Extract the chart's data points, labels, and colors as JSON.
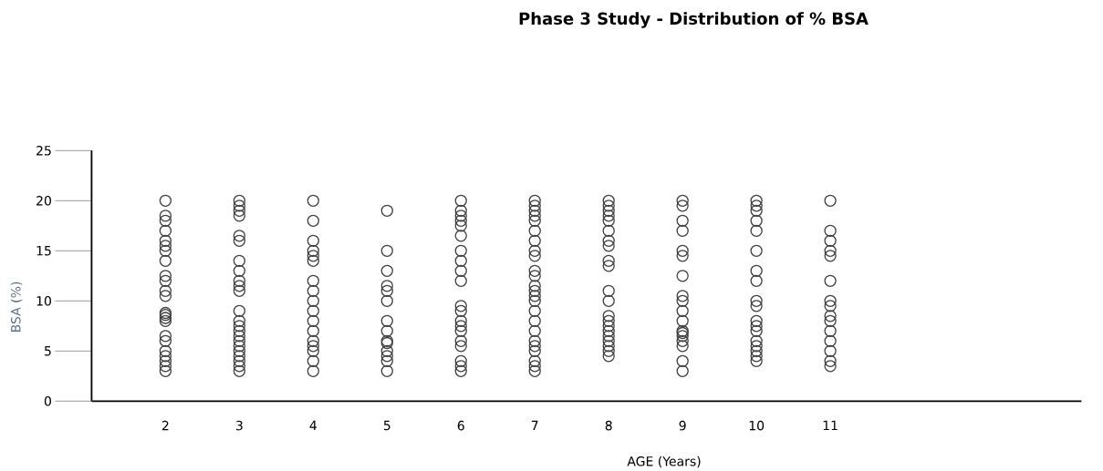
{
  "chart_data": {
    "type": "scatter",
    "title": "Phase 3 Study - Distribution of % BSA",
    "xlabel": "AGE (Years)",
    "ylabel": "BSA (%)",
    "xlim": [
      1,
      14.4
    ],
    "ylim": [
      0,
      25
    ],
    "xticks": [
      2,
      3,
      4,
      5,
      6,
      7,
      8,
      9,
      10,
      11
    ],
    "yticks": [
      0,
      5,
      10,
      15,
      20,
      25
    ],
    "marker": "circle",
    "series": [
      {
        "color": "#404040",
        "x": [
          2,
          2,
          2,
          2,
          2,
          2,
          2,
          2,
          2,
          2,
          2,
          2,
          2,
          2,
          2,
          2,
          2,
          2,
          2,
          2,
          2,
          2,
          2,
          3,
          3,
          3,
          3,
          3,
          3,
          3,
          3,
          3,
          3,
          3,
          3,
          3,
          3,
          3,
          3,
          3,
          3,
          3,
          3,
          3,
          3,
          3,
          4,
          4,
          4,
          4,
          4,
          4,
          4,
          4,
          4,
          4,
          4,
          4,
          4,
          4,
          4,
          4,
          4,
          5,
          5,
          5,
          5,
          5,
          5,
          5,
          5,
          5,
          5,
          5,
          5,
          5,
          5,
          6,
          6,
          6,
          6,
          6,
          6,
          6,
          6,
          6,
          6,
          6,
          6,
          6,
          6,
          6,
          6,
          6,
          6,
          6,
          6,
          7,
          7,
          7,
          7,
          7,
          7,
          7,
          7,
          7,
          7,
          7,
          7,
          7,
          7,
          7,
          7,
          7,
          7,
          7,
          7,
          7,
          7,
          7,
          7,
          8,
          8,
          8,
          8,
          8,
          8,
          8,
          8,
          8,
          8,
          8,
          8,
          8,
          8,
          8,
          8,
          8,
          8,
          8,
          8,
          8,
          9,
          9,
          9,
          9,
          9,
          9,
          9,
          9,
          9,
          9,
          9,
          9,
          9,
          9,
          9,
          9,
          9,
          9,
          10,
          10,
          10,
          10,
          10,
          10,
          10,
          10,
          10,
          10,
          10,
          10,
          10,
          10,
          10,
          10,
          10,
          10,
          11,
          11,
          11,
          11,
          11,
          11,
          11,
          11,
          11,
          11,
          11,
          11,
          11,
          11,
          11
        ],
        "values": [
          20,
          18.5,
          18,
          17,
          16,
          15.5,
          15,
          14,
          12.5,
          12,
          11,
          10.5,
          8.8,
          8.6,
          8.3,
          8,
          6.5,
          6,
          5,
          4.5,
          4,
          3.5,
          3,
          20,
          19.5,
          19,
          18.5,
          16.5,
          16,
          14,
          13,
          12,
          11.5,
          11,
          9,
          8,
          7.5,
          7,
          6.5,
          6,
          5.5,
          5,
          4.5,
          4,
          3.5,
          3,
          20,
          18,
          16,
          15,
          14.5,
          14,
          12,
          11,
          10,
          9,
          8,
          7,
          6,
          5.5,
          5,
          4,
          3,
          19,
          15,
          13,
          11.5,
          11,
          10,
          8,
          7,
          6,
          5.8,
          5,
          4.5,
          4,
          3,
          20,
          19,
          18.5,
          18,
          17.5,
          16.5,
          15,
          14,
          13,
          12,
          9.5,
          9,
          8,
          7.5,
          7,
          6,
          5.5,
          4,
          3.5,
          3,
          20,
          19.5,
          19,
          18.5,
          18,
          17,
          16,
          15,
          14.5,
          13,
          12.5,
          11.5,
          11,
          10.5,
          10,
          9,
          8,
          7,
          6,
          5.5,
          5,
          4,
          3.5,
          3,
          20,
          19.5,
          19,
          18.5,
          18,
          17,
          16,
          15.5,
          14,
          13.5,
          11,
          10,
          8.5,
          8,
          7.5,
          7,
          6.5,
          6,
          5.5,
          5,
          4.5,
          20,
          19.5,
          18,
          17,
          15,
          14.5,
          12.5,
          10.5,
          10,
          9,
          8,
          7,
          6.8,
          6.5,
          6,
          5.5,
          4,
          3,
          20,
          19.5,
          19,
          18,
          17,
          15,
          13,
          12,
          10,
          9.5,
          8,
          7.5,
          7,
          6,
          5.5,
          5,
          4.5,
          4,
          20,
          17,
          16,
          15,
          14.5,
          12,
          10,
          9.5,
          8.5,
          8,
          7,
          6,
          5,
          4,
          3.5
        ]
      }
    ]
  }
}
